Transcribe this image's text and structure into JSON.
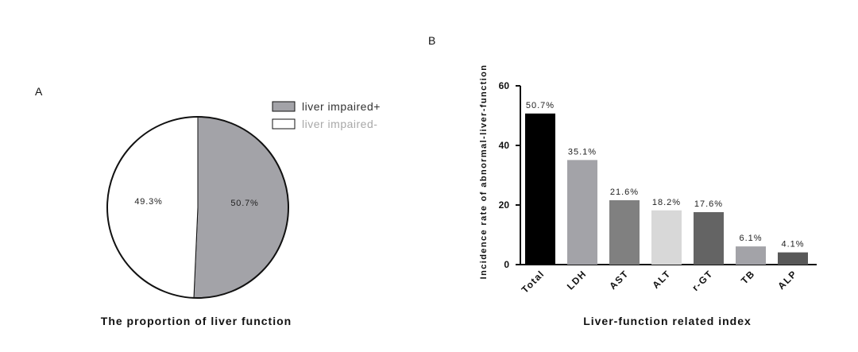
{
  "chart_data": [
    {
      "panel": "A",
      "type": "pie",
      "title": "The proportion of liver function",
      "labels": [
        "liver impaired+",
        "liver impaired-"
      ],
      "values": [
        50.7,
        49.3
      ],
      "value_labels": [
        "50.7%",
        "49.3%"
      ],
      "colors": [
        "#a3a3a8",
        "#ffffff"
      ],
      "legend": {
        "position": "top-right",
        "entries": [
          "liver impaired+",
          "liver impaired-"
        ]
      },
      "legend_text_colors": [
        "#333333",
        "#a8a8a8"
      ]
    },
    {
      "panel": "B",
      "type": "bar",
      "title": "",
      "xlabel": "Liver-function related index",
      "ylabel": "Incidence rate of abnormal-liver-function",
      "categories": [
        "Total",
        "LDH",
        "AST",
        "ALT",
        "r-GT",
        "TB",
        "ALP"
      ],
      "values": [
        50.7,
        35.1,
        21.6,
        18.2,
        17.6,
        6.1,
        4.1
      ],
      "value_labels": [
        "50.7%",
        "35.1%",
        "21.6%",
        "18.2%",
        "17.6%",
        "6.1%",
        "4.1%"
      ],
      "colors": [
        "#000000",
        "#a3a3a8",
        "#808080",
        "#d8d8d8",
        "#646464",
        "#a3a3a8",
        "#585858"
      ],
      "ylim": [
        0,
        60
      ],
      "yticks": [
        0,
        20,
        40,
        60
      ],
      "ytick_labels": [
        "0",
        "20",
        "40",
        "60"
      ],
      "grid": false
    }
  ]
}
